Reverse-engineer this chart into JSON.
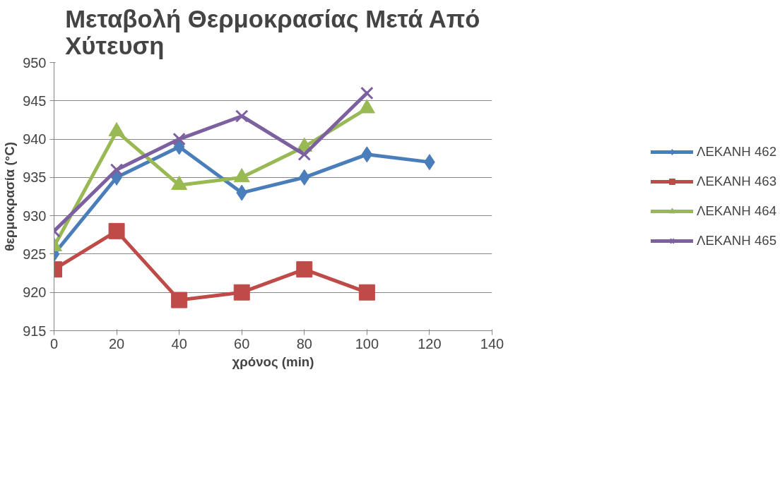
{
  "chart_data": {
    "type": "line",
    "title": "Μεταβολή Θερμοκρασίας Μετά Από\nΧύτευση",
    "xlabel": "χρόνος (min)",
    "ylabel": "θερμοκρασία (°C)",
    "series": [
      {
        "name": "ΛΕΚΑΝΗ 462",
        "color": "#4a7ebb",
        "marker": "diamond",
        "x": [
          0,
          20,
          40,
          60,
          80,
          100,
          120
        ],
        "values": [
          925,
          935,
          939,
          933,
          935,
          938,
          937
        ]
      },
      {
        "name": "ΛΕΚΑΝΗ 463",
        "color": "#be4b48",
        "marker": "square",
        "x": [
          0,
          20,
          40,
          60,
          80,
          100
        ],
        "values": [
          923,
          928,
          919,
          920,
          923,
          920
        ]
      },
      {
        "name": "ΛΕΚΑΝΗ 464",
        "color": "#98b954",
        "marker": "triangle",
        "x": [
          0,
          20,
          40,
          60,
          80,
          100
        ],
        "values": [
          926,
          941,
          934,
          935,
          939,
          944
        ]
      },
      {
        "name": "ΛΕΚΑΝΗ 465",
        "color": "#7d60a0",
        "marker": "cross",
        "x": [
          0,
          20,
          40,
          60,
          80,
          100
        ],
        "values": [
          928,
          936,
          940,
          943,
          938,
          946
        ]
      }
    ],
    "xlim": [
      0,
      140
    ],
    "xticks": [
      0,
      20,
      40,
      60,
      80,
      100,
      120,
      140
    ],
    "ylim": [
      915,
      950
    ],
    "yticks": [
      915,
      920,
      925,
      930,
      935,
      940,
      945,
      950
    ],
    "grid": "y",
    "legend": "right",
    "line_style": "solid"
  }
}
